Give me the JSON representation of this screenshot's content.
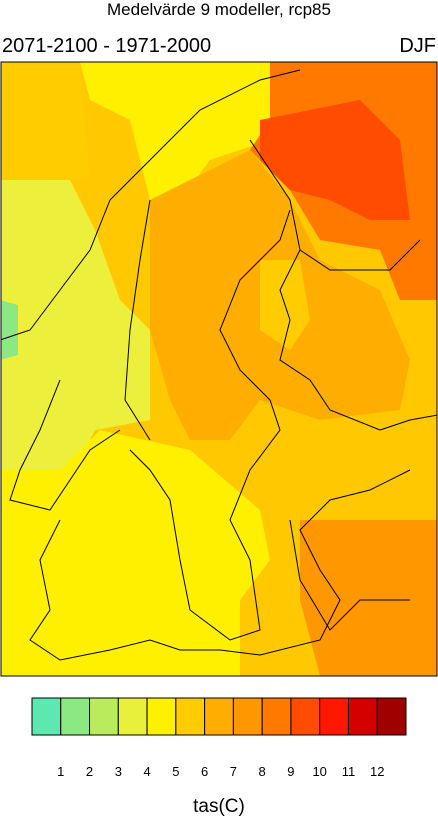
{
  "title": "Medelvärde 9 modeller, rcp85",
  "period": "2071-2100 - 1971-2000",
  "season": "DJF",
  "colorbar": {
    "colors": [
      "#5ce8b0",
      "#8ce882",
      "#b8ec5c",
      "#e8f03c",
      "#fff000",
      "#ffcc00",
      "#ffae00",
      "#ff9800",
      "#ff7800",
      "#ff4c00",
      "#ff1800",
      "#d40000",
      "#a00000"
    ],
    "ticks": [
      1,
      2,
      3,
      4,
      5,
      6,
      7,
      8,
      9,
      10,
      11,
      12
    ],
    "label": "tas(C)"
  }
}
